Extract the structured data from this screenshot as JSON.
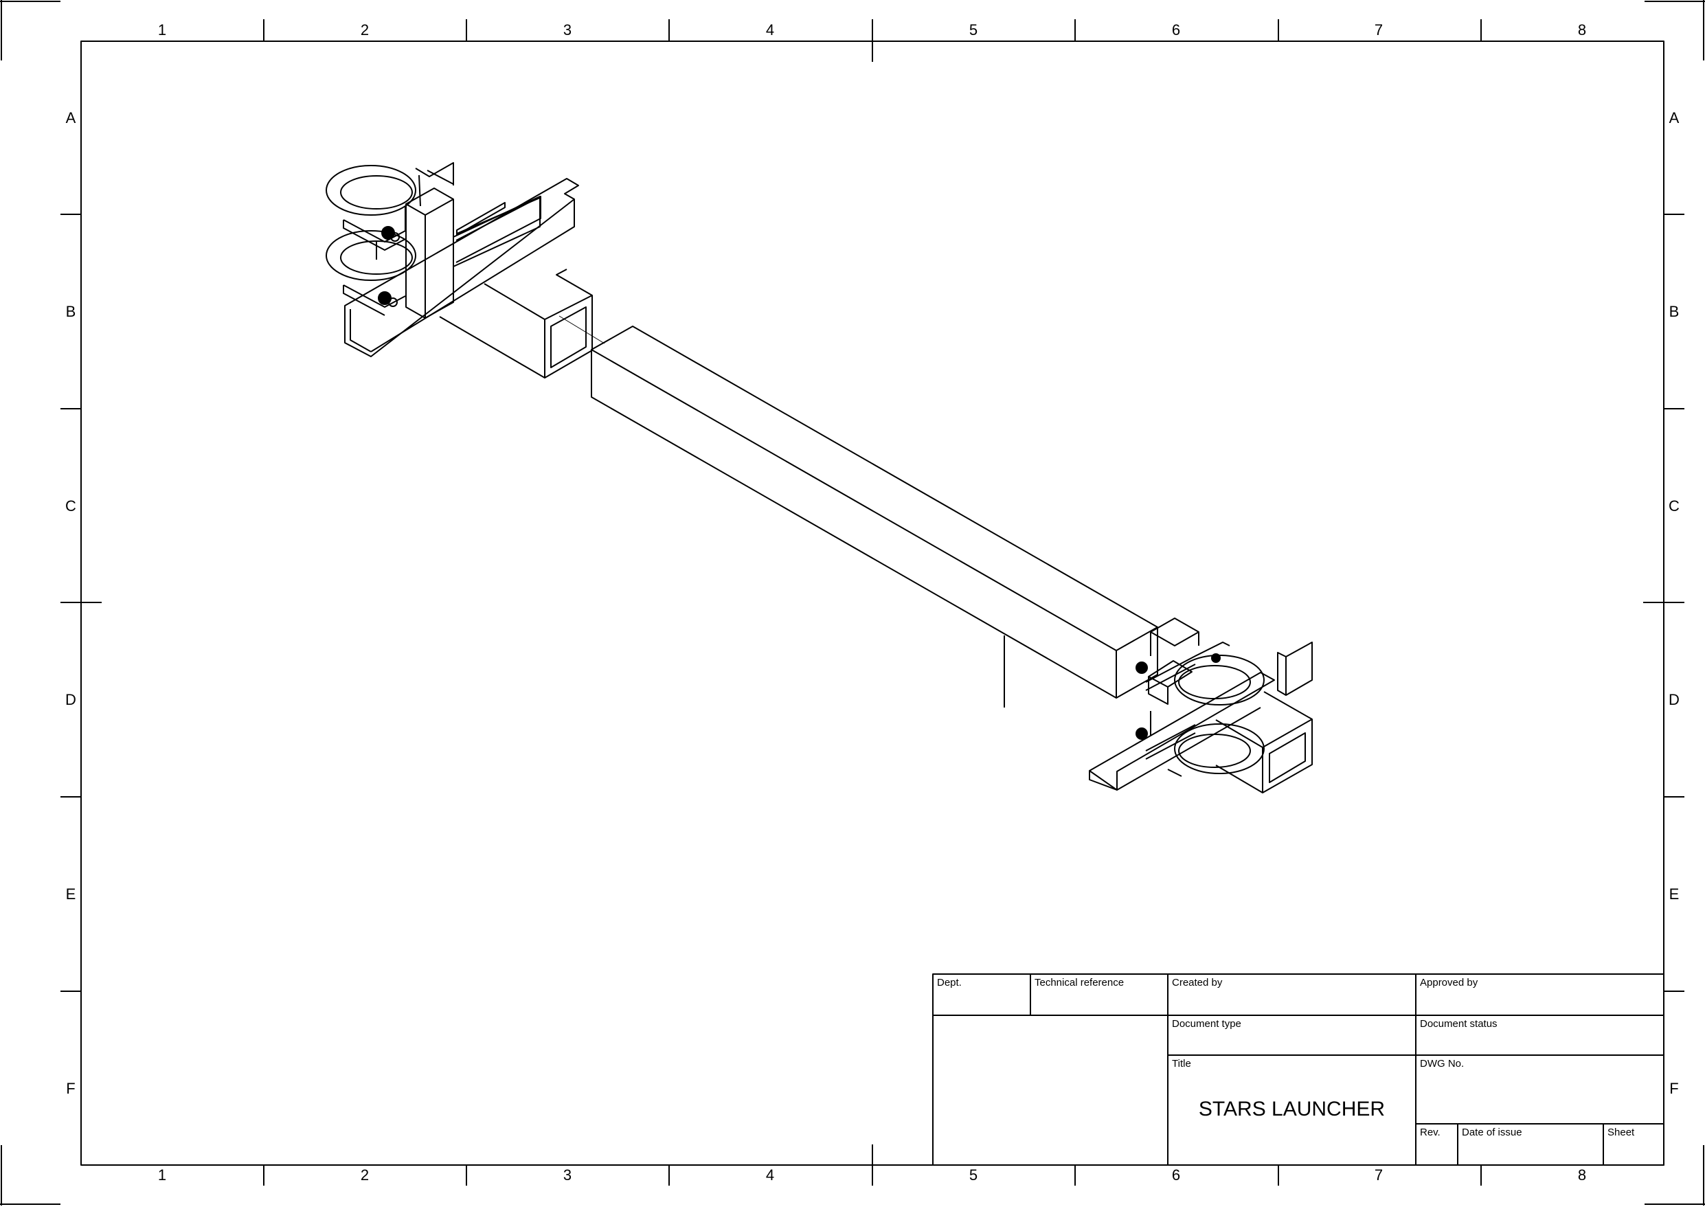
{
  "border": {
    "columns": [
      "1",
      "2",
      "3",
      "4",
      "5",
      "6",
      "7",
      "8"
    ],
    "rows": [
      "A",
      "B",
      "C",
      "D",
      "E",
      "F"
    ]
  },
  "title_block": {
    "dept_label": "Dept.",
    "tech_ref_label": "Technical reference",
    "created_by_label": "Created by",
    "approved_by_label": "Approved by",
    "doc_type_label": "Document type",
    "doc_status_label": "Document status",
    "title_label": "Title",
    "title_value": "STARS LAUNCHER",
    "dwg_no_label": "DWG No.",
    "rev_label": "Rev.",
    "date_label": "Date of issue",
    "sheet_label": "Sheet"
  }
}
